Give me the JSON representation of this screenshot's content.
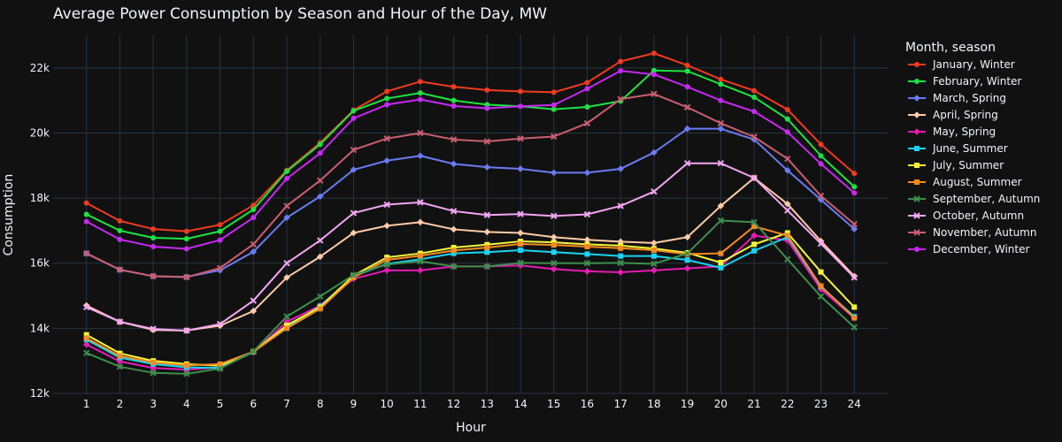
{
  "chart_data": {
    "type": "line",
    "title": "Average Power Consumption by Season and Hour of the Day, MW",
    "xlabel": "Hour",
    "ylabel": "Consumption",
    "x": [
      1,
      2,
      3,
      4,
      5,
      6,
      7,
      8,
      9,
      10,
      11,
      12,
      13,
      14,
      15,
      16,
      17,
      18,
      19,
      20,
      21,
      22,
      23,
      24
    ],
    "xlim": [
      0,
      25
    ],
    "ylim": [
      12000,
      23000
    ],
    "y_ticks": [
      12000,
      14000,
      16000,
      18000,
      20000,
      22000
    ],
    "y_tick_labels": [
      "12k",
      "14k",
      "16k",
      "18k",
      "20k",
      "22k"
    ],
    "grid": true,
    "legend_title": "Month, season",
    "legend_position": "right",
    "series": [
      {
        "name": "January, Winter",
        "color": "#EF3B1F",
        "marker": "circle",
        "values": [
          17850,
          17300,
          17050,
          16980,
          17180,
          17780,
          18850,
          19700,
          20700,
          21280,
          21580,
          21420,
          21320,
          21280,
          21250,
          21550,
          22200,
          22450,
          22080,
          21650,
          21300,
          20720,
          19650,
          18760
        ]
      },
      {
        "name": "February, Winter",
        "color": "#1CE341",
        "marker": "circle",
        "values": [
          17500,
          17000,
          16780,
          16750,
          16980,
          17650,
          18820,
          19650,
          20680,
          21060,
          21230,
          21000,
          20870,
          20820,
          20730,
          20800,
          20980,
          21920,
          21900,
          21500,
          21100,
          20430,
          19300,
          18350
        ]
      },
      {
        "name": "March, Spring",
        "color": "#6A7BF2",
        "marker": "diamond",
        "values": [
          16300,
          15800,
          15600,
          15580,
          15780,
          16350,
          17400,
          18050,
          18870,
          19150,
          19300,
          19050,
          18950,
          18900,
          18780,
          18780,
          18900,
          19400,
          20130,
          20130,
          19800,
          18850,
          17950,
          17050
        ]
      },
      {
        "name": "April, Spring",
        "color": "#FECBA8",
        "marker": "diamond",
        "values": [
          14700,
          14200,
          13950,
          13930,
          14080,
          14530,
          15560,
          16200,
          16930,
          17150,
          17260,
          17040,
          16960,
          16930,
          16800,
          16720,
          16660,
          16620,
          16800,
          17760,
          18620,
          17820,
          16680,
          15600
        ]
      },
      {
        "name": "May, Spring",
        "color": "#E61CB4",
        "marker": "diamond",
        "values": [
          13500,
          12980,
          12780,
          12730,
          12800,
          13270,
          14200,
          14700,
          15520,
          15780,
          15780,
          15900,
          15900,
          15930,
          15820,
          15750,
          15720,
          15780,
          15840,
          15900,
          16850,
          16700,
          15200,
          14320
        ]
      },
      {
        "name": "June, Summer",
        "color": "#19D3F3",
        "marker": "square",
        "values": [
          13650,
          13100,
          12900,
          12800,
          12780,
          13270,
          14040,
          14680,
          15600,
          15980,
          16120,
          16300,
          16340,
          16400,
          16340,
          16280,
          16220,
          16220,
          16100,
          15860,
          16380,
          16800,
          15280,
          14360
        ]
      },
      {
        "name": "July, Summer",
        "color": "#F5F53A",
        "marker": "square",
        "values": [
          13800,
          13230,
          13000,
          12900,
          12850,
          13280,
          14090,
          14650,
          15620,
          16180,
          16300,
          16480,
          16570,
          16670,
          16640,
          16580,
          16540,
          16450,
          16320,
          16020,
          16580,
          16930,
          15730,
          14650
        ]
      },
      {
        "name": "August, Summer",
        "color": "#F28C21",
        "marker": "square",
        "values": [
          13700,
          13150,
          12950,
          12860,
          12900,
          13280,
          14000,
          14600,
          15560,
          16100,
          16230,
          16390,
          16480,
          16590,
          16560,
          16510,
          16460,
          16400,
          16280,
          16300,
          17130,
          16850,
          15300,
          14320
        ]
      },
      {
        "name": "September, Autumn",
        "color": "#3E8E4E",
        "marker": "x",
        "values": [
          13240,
          12820,
          12630,
          12600,
          12760,
          13290,
          14360,
          14980,
          15640,
          15960,
          16060,
          15900,
          15900,
          16010,
          16000,
          16000,
          16010,
          15980,
          16300,
          17310,
          17260,
          16120,
          14980,
          14030
        ]
      },
      {
        "name": "October, Autumn",
        "color": "#F3A6F3",
        "marker": "x",
        "values": [
          14650,
          14200,
          13980,
          13930,
          14130,
          14850,
          16000,
          16700,
          17540,
          17800,
          17870,
          17600,
          17480,
          17510,
          17450,
          17500,
          17760,
          18200,
          19070,
          19070,
          18620,
          17620,
          16600,
          15560
        ]
      },
      {
        "name": "November, Autumn",
        "color": "#C95F70",
        "marker": "x",
        "values": [
          16300,
          15800,
          15600,
          15570,
          15850,
          16580,
          17760,
          18540,
          19480,
          19830,
          20000,
          19800,
          19740,
          19830,
          19890,
          20300,
          21040,
          21200,
          20790,
          20300,
          19880,
          19210,
          18070,
          17200
        ]
      },
      {
        "name": "December, Winter",
        "color": "#C729F2",
        "marker": "circle",
        "values": [
          17280,
          16730,
          16510,
          16440,
          16710,
          17400,
          18600,
          19380,
          20450,
          20870,
          21030,
          20830,
          20760,
          20820,
          20860,
          21360,
          21910,
          21800,
          21420,
          21000,
          20660,
          20030,
          19050,
          18160
        ]
      }
    ]
  }
}
